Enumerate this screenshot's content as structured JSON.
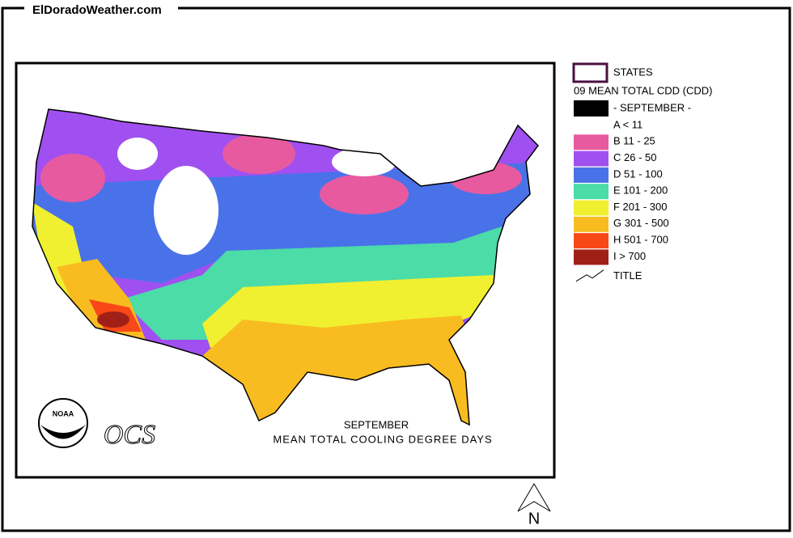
{
  "header": {
    "site": "ElDoradoWeather.com"
  },
  "legend": {
    "states": "STATES",
    "variable": "09 MEAN TOTAL CDD (CDD)",
    "month": "- SEPTEMBER -",
    "classes": [
      {
        "label": "A < 11",
        "color": "#ffffff"
      },
      {
        "label": "B 11 - 25",
        "color": "#e85aa0"
      },
      {
        "label": "C 26 - 50",
        "color": "#a050f0"
      },
      {
        "label": "D 51 - 100",
        "color": "#4a72e8"
      },
      {
        "label": "E 101 - 200",
        "color": "#4bdca8"
      },
      {
        "label": "F 201 - 300",
        "color": "#f0f030"
      },
      {
        "label": "G 301 - 500",
        "color": "#f8bc20"
      },
      {
        "label": "H 501 - 700",
        "color": "#f84818"
      },
      {
        "label": "I > 700",
        "color": "#a02018"
      }
    ],
    "title": "TITLE"
  },
  "map": {
    "caption": [
      "SEPTEMBER",
      "MEAN TOTAL COOLING DEGREE DAYS"
    ],
    "logo": "NOAA",
    "ocs": "OCS",
    "north": "N"
  }
}
